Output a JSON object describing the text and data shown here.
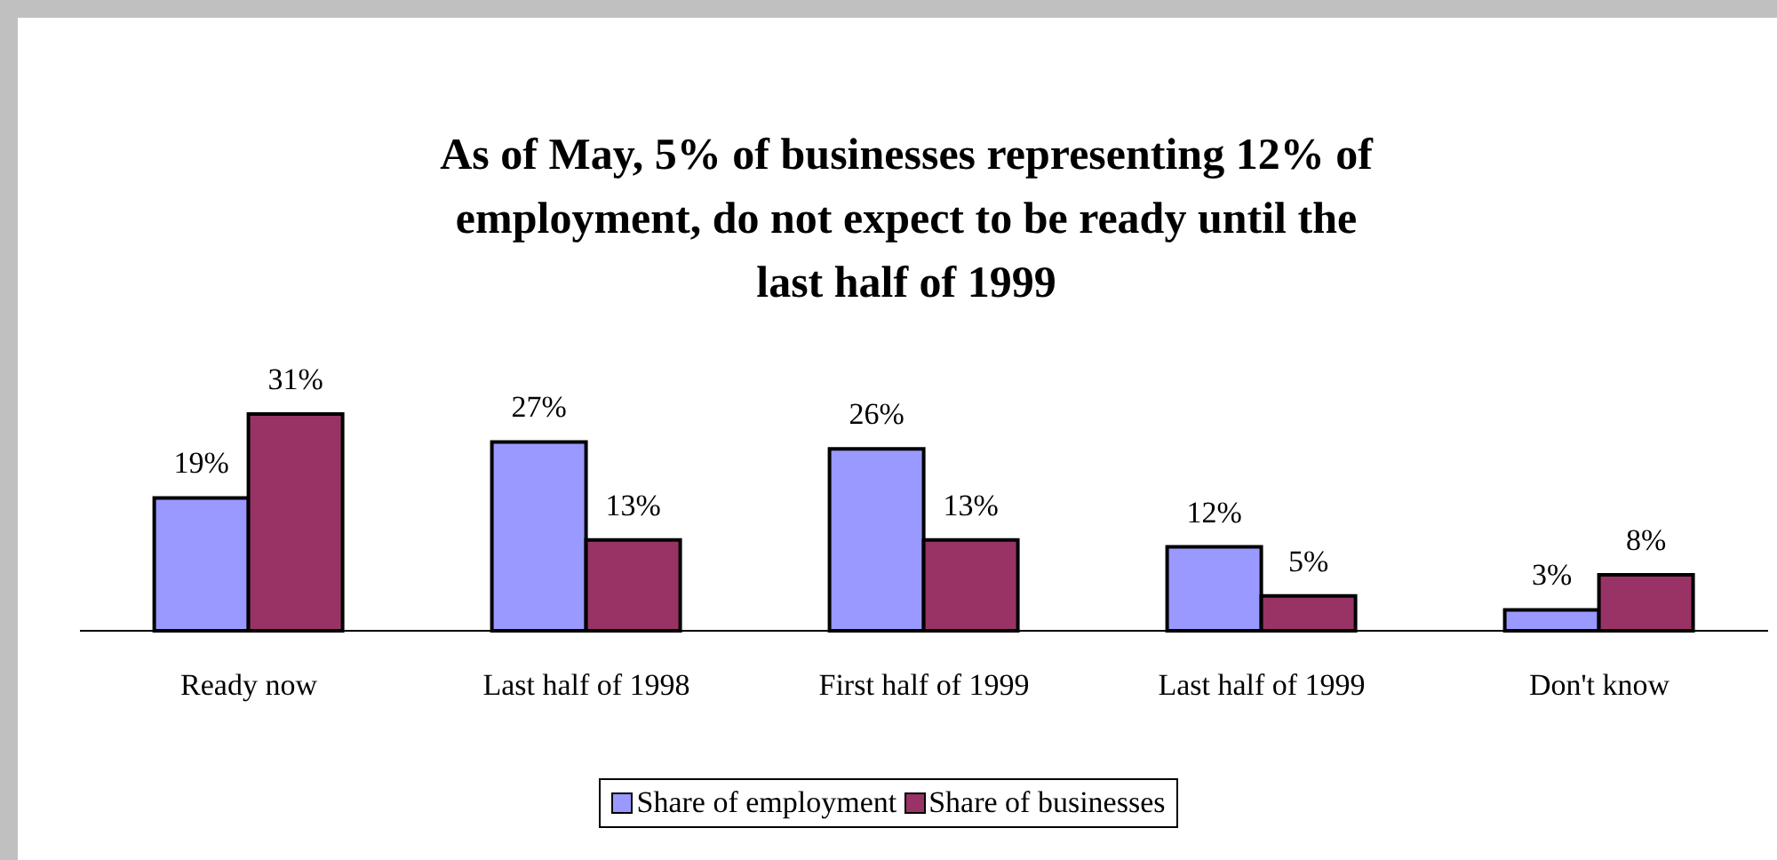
{
  "chart_data": {
    "type": "bar",
    "title": "As of May, 5% of businesses representing 12% of employment, do not expect to be ready until the last half of 1999",
    "categories": [
      "Ready now",
      "Last half of 1998",
      "First half of 1999",
      "Last half of 1999",
      "Don't know"
    ],
    "series": [
      {
        "name": "Share of employment",
        "color": "#9999ff",
        "values": [
          19,
          27,
          26,
          12,
          3
        ],
        "value_labels": [
          "19%",
          "27%",
          "26%",
          "12%",
          "3%"
        ]
      },
      {
        "name": "Share of businesses",
        "color": "#993366",
        "values": [
          31,
          13,
          13,
          5,
          8
        ],
        "value_labels": [
          "31%",
          "13%",
          "13%",
          "5%",
          "8%"
        ]
      }
    ],
    "legend": "bottom"
  }
}
